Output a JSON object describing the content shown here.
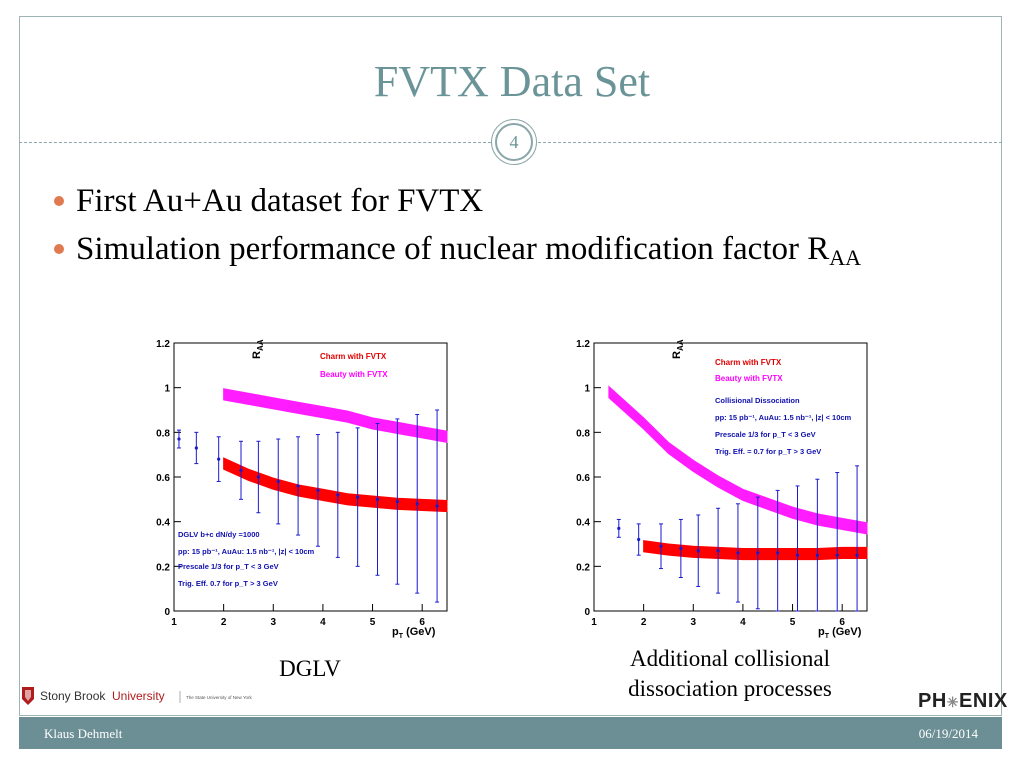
{
  "slide": {
    "title": "FVTX Data Set",
    "page_number": "4",
    "bullets": [
      {
        "text": "First Au+Au dataset for FVTX",
        "sub": ""
      },
      {
        "text": "Simulation performance of nuclear modification factor R",
        "sub": "AA"
      }
    ]
  },
  "plots": [
    {
      "caption": "DGLV",
      "ylabel": "R_AA",
      "xlabel": "p_T (GeV)",
      "legend": [
        "Charm with FVTX",
        "Beauty with FVTX"
      ],
      "notes": [
        "DGLV b+c dN/dy =1000",
        "pp: 15 pb⁻¹, AuAu: 1.5 nb⁻¹, |z| < 10cm",
        "Prescale 1/3 for p_T < 3 GeV",
        "Trig. Eff. 0.7 for p_T > 3 GeV"
      ]
    },
    {
      "caption_line1": "Additional collisional",
      "caption_line2": "dissociation processes",
      "ylabel": "R_AA",
      "xlabel": "p_T (GeV)",
      "legend": [
        "Charm with FVTX",
        "Beauty with FVTX"
      ],
      "notes": [
        "Collisional Dissociation",
        "pp: 15 pb⁻¹, AuAu: 1.5 nb⁻¹, |z| < 10cm",
        "Prescale 1/3 for p_T < 3 GeV",
        "Trig. Eff. = 0.7 for p_T > 3 GeV"
      ]
    }
  ],
  "chart_data": [
    {
      "type": "line",
      "ylabel": "R_AA",
      "xlabel": "p_T (GeV)",
      "xlim": [
        1,
        6.5
      ],
      "ylim": [
        0,
        1.2
      ],
      "x_ticks": [
        1,
        2,
        3,
        4,
        5,
        6
      ],
      "y_ticks": [
        0,
        0.2,
        0.4,
        0.6,
        0.8,
        1,
        1.2
      ],
      "series": [
        {
          "name": "Beauty with FVTX",
          "color": "#ff1dff",
          "x": [
            2.0,
            2.5,
            3.0,
            3.5,
            4.0,
            4.5,
            5.0,
            5.5,
            6.0,
            6.5
          ],
          "y": [
            0.97,
            0.95,
            0.93,
            0.91,
            0.89,
            0.87,
            0.84,
            0.82,
            0.8,
            0.78
          ]
        },
        {
          "name": "Charm with FVTX",
          "color": "#ff0000",
          "x": [
            2.0,
            2.5,
            3.0,
            3.5,
            4.0,
            4.5,
            5.0,
            5.5,
            6.0,
            6.5
          ],
          "y": [
            0.66,
            0.61,
            0.57,
            0.54,
            0.52,
            0.5,
            0.49,
            0.48,
            0.475,
            0.47
          ]
        }
      ],
      "points": {
        "x": [
          1.1,
          1.45,
          1.9,
          2.35,
          2.7,
          3.1,
          3.5,
          3.9,
          4.3,
          4.7,
          5.1,
          5.5,
          5.9,
          6.3
        ],
        "y": [
          0.77,
          0.73,
          0.68,
          0.63,
          0.6,
          0.58,
          0.56,
          0.54,
          0.52,
          0.51,
          0.5,
          0.49,
          0.48,
          0.47
        ]
      }
    },
    {
      "type": "line",
      "ylabel": "R_AA",
      "xlabel": "p_T (GeV)",
      "xlim": [
        1,
        6.5
      ],
      "ylim": [
        0,
        1.2
      ],
      "x_ticks": [
        1,
        2,
        3,
        4,
        5,
        6
      ],
      "y_ticks": [
        0,
        0.2,
        0.4,
        0.6,
        0.8,
        1,
        1.2
      ],
      "series": [
        {
          "name": "Beauty with FVTX",
          "color": "#ff1dff",
          "x": [
            1.3,
            2.0,
            2.5,
            3.0,
            3.5,
            4.0,
            4.5,
            5.0,
            5.5,
            6.0,
            6.5
          ],
          "y": [
            0.98,
            0.84,
            0.73,
            0.65,
            0.58,
            0.52,
            0.48,
            0.44,
            0.41,
            0.39,
            0.37
          ]
        },
        {
          "name": "Charm with FVTX",
          "color": "#ff0000",
          "x": [
            2.0,
            2.5,
            3.0,
            3.5,
            4.0,
            4.5,
            5.0,
            5.5,
            6.0,
            6.5
          ],
          "y": [
            0.29,
            0.275,
            0.265,
            0.26,
            0.255,
            0.255,
            0.255,
            0.255,
            0.26,
            0.26
          ]
        }
      ],
      "points": {
        "x": [
          1.5,
          1.9,
          2.35,
          2.75,
          3.1,
          3.5,
          3.9,
          4.3,
          4.7,
          5.1,
          5.5,
          5.9,
          6.3
        ],
        "y": [
          0.37,
          0.32,
          0.29,
          0.28,
          0.27,
          0.27,
          0.26,
          0.26,
          0.26,
          0.25,
          0.25,
          0.25,
          0.25
        ]
      }
    }
  ]
}
